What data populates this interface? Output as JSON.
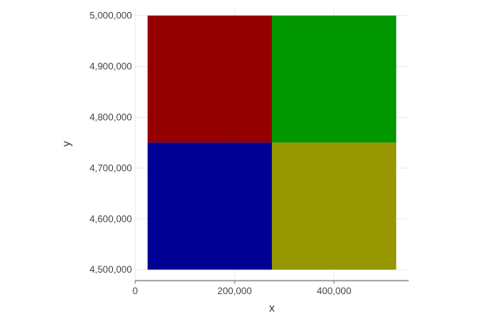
{
  "chart_data": {
    "type": "heatmap",
    "title": "",
    "xlabel": "x",
    "ylabel": "y",
    "xlim": [
      0,
      550000
    ],
    "ylim": [
      4480000,
      5015000
    ],
    "x_ticks": [
      0,
      200000,
      400000
    ],
    "x_tick_labels": [
      "0",
      "200,000",
      "400,000"
    ],
    "y_ticks": [
      4500000,
      4600000,
      4700000,
      4800000,
      4900000,
      5000000
    ],
    "y_tick_labels": [
      "4,500,000",
      "4,600,000",
      "4,700,000",
      "4,800,000",
      "4,900,000",
      "5,000,000"
    ],
    "grid": true,
    "cells": [
      {
        "x0": 25000,
        "x1": 275000,
        "y0": 4750000,
        "y1": 5000000,
        "color": "#940000"
      },
      {
        "x0": 275000,
        "x1": 525000,
        "y0": 4750000,
        "y1": 5000000,
        "color": "#009600"
      },
      {
        "x0": 25000,
        "x1": 275000,
        "y0": 4500000,
        "y1": 4750000,
        "color": "#000094"
      },
      {
        "x0": 275000,
        "x1": 525000,
        "y0": 4500000,
        "y1": 4750000,
        "color": "#969600"
      }
    ],
    "colors": {
      "grid": "#ebebeb",
      "axis": "#777777"
    }
  }
}
